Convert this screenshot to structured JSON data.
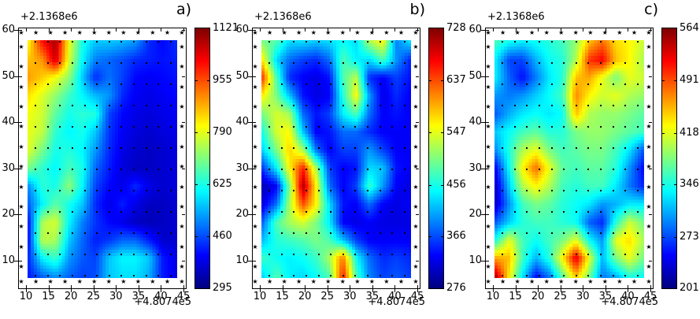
{
  "figure": {
    "background": "#ffffff",
    "star_glyph": "★",
    "marker_color": "#000000",
    "colormap": {
      "name": "jet",
      "stops": [
        {
          "t": 0.0,
          "color": "#00007f"
        },
        {
          "t": 0.125,
          "color": "#0000ff"
        },
        {
          "t": 0.375,
          "color": "#00ffff"
        },
        {
          "t": 0.5,
          "color": "#7fff7f"
        },
        {
          "t": 0.625,
          "color": "#ffff00"
        },
        {
          "t": 0.875,
          "color": "#ff0000"
        },
        {
          "t": 1.0,
          "color": "#7f0000"
        }
      ]
    }
  },
  "chart_data": [
    {
      "type": "heatmap",
      "title": "a)",
      "y_offset_label": "+2.1368e6",
      "x_offset_label": "+4.8074e5",
      "x_tick_labels": [
        "10",
        "15",
        "20",
        "25",
        "30",
        "35",
        "40",
        "45"
      ],
      "y_tick_labels": [
        "60",
        "50",
        "40",
        "30",
        "20",
        "10"
      ],
      "xlim": [
        8.2,
        45.7
      ],
      "ylim": [
        3.9,
        60.5
      ],
      "vmin": 295,
      "vmax": 1121,
      "colorbar_tick_labels": [
        "1121",
        "955",
        "790",
        "625",
        "460",
        "295"
      ],
      "colorbar_tick_values": [
        1121,
        955,
        790,
        625,
        460,
        295
      ],
      "grid_x": [
        12.5,
        15.3,
        18.1,
        20.9,
        23.7,
        26.5,
        29.2,
        32.0,
        34.8,
        37.6,
        40.4,
        43.2
      ],
      "grid_y": [
        58,
        54,
        50,
        46,
        42,
        38,
        34,
        30,
        26,
        22,
        18,
        14,
        10,
        7
      ],
      "values": [
        [
          820,
          1010,
          1090,
          800,
          620,
          560,
          560,
          545,
          520,
          430,
          400,
          430
        ],
        [
          860,
          900,
          1060,
          780,
          600,
          500,
          480,
          460,
          430,
          420,
          410,
          420
        ],
        [
          890,
          850,
          800,
          720,
          560,
          430,
          490,
          450,
          400,
          390,
          400,
          410
        ],
        [
          830,
          780,
          720,
          650,
          600,
          550,
          520,
          430,
          390,
          380,
          390,
          400
        ],
        [
          800,
          770,
          680,
          620,
          640,
          630,
          450,
          400,
          380,
          370,
          380,
          390
        ],
        [
          790,
          760,
          640,
          600,
          620,
          560,
          440,
          390,
          370,
          360,
          370,
          380
        ],
        [
          780,
          700,
          620,
          630,
          600,
          520,
          430,
          380,
          360,
          350,
          360,
          370
        ],
        [
          700,
          640,
          600,
          660,
          620,
          480,
          420,
          370,
          350,
          350,
          360,
          370
        ],
        [
          520,
          640,
          620,
          720,
          600,
          450,
          400,
          380,
          430,
          380,
          360,
          370
        ],
        [
          480,
          600,
          680,
          620,
          560,
          430,
          380,
          420,
          380,
          350,
          350,
          360
        ],
        [
          430,
          750,
          780,
          600,
          500,
          440,
          400,
          380,
          350,
          340,
          350,
          360
        ],
        [
          430,
          760,
          740,
          560,
          480,
          420,
          440,
          480,
          480,
          420,
          360,
          360
        ],
        [
          440,
          600,
          650,
          520,
          470,
          450,
          560,
          600,
          600,
          560,
          420,
          380
        ],
        [
          420,
          480,
          520,
          480,
          450,
          460,
          560,
          580,
          580,
          540,
          420,
          380
        ]
      ]
    },
    {
      "type": "heatmap",
      "title": "b)",
      "y_offset_label": "+2.1368e6",
      "x_offset_label": "+4.8074e5",
      "x_tick_labels": [
        "10",
        "15",
        "20",
        "25",
        "30",
        "35",
        "40",
        "45"
      ],
      "y_tick_labels": [
        "60",
        "50",
        "40",
        "30",
        "20",
        "10"
      ],
      "xlim": [
        8.2,
        45.7
      ],
      "ylim": [
        3.9,
        60.5
      ],
      "vmin": 276,
      "vmax": 728,
      "colorbar_tick_labels": [
        "728",
        "637",
        "547",
        "456",
        "366",
        "276"
      ],
      "colorbar_tick_values": [
        728,
        637,
        547,
        456,
        366,
        276
      ],
      "grid_x": [
        12.5,
        15.3,
        18.1,
        20.9,
        23.7,
        26.5,
        29.2,
        32.0,
        34.8,
        37.6,
        40.4,
        43.2
      ],
      "grid_y": [
        58,
        54,
        50,
        46,
        42,
        38,
        34,
        30,
        26,
        22,
        18,
        14,
        10,
        7
      ],
      "values": [
        [
          500,
          480,
          430,
          430,
          420,
          430,
          450,
          430,
          520,
          560,
          390,
          430
        ],
        [
          560,
          430,
          380,
          360,
          350,
          380,
          480,
          440,
          430,
          480,
          400,
          350
        ],
        [
          640,
          480,
          350,
          330,
          320,
          340,
          480,
          530,
          350,
          330,
          360,
          340
        ],
        [
          560,
          500,
          420,
          340,
          320,
          330,
          460,
          560,
          400,
          320,
          350,
          330
        ],
        [
          500,
          540,
          520,
          380,
          340,
          360,
          440,
          480,
          380,
          330,
          340,
          330
        ],
        [
          460,
          540,
          560,
          420,
          330,
          340,
          380,
          380,
          350,
          330,
          330,
          330
        ],
        [
          430,
          500,
          580,
          520,
          380,
          330,
          360,
          360,
          400,
          360,
          330,
          330
        ],
        [
          360,
          440,
          560,
          660,
          520,
          360,
          330,
          340,
          430,
          420,
          340,
          330
        ],
        [
          300,
          330,
          500,
          710,
          560,
          380,
          330,
          360,
          470,
          400,
          330,
          320
        ],
        [
          320,
          380,
          520,
          640,
          560,
          430,
          340,
          330,
          380,
          330,
          320,
          330
        ],
        [
          380,
          480,
          520,
          540,
          500,
          440,
          330,
          320,
          330,
          320,
          320,
          320
        ],
        [
          420,
          460,
          470,
          480,
          500,
          480,
          420,
          360,
          330,
          330,
          330,
          330
        ],
        [
          470,
          450,
          440,
          450,
          470,
          520,
          620,
          450,
          380,
          350,
          360,
          350
        ],
        [
          430,
          480,
          440,
          430,
          450,
          480,
          660,
          480,
          390,
          360,
          370,
          360
        ]
      ]
    },
    {
      "type": "heatmap",
      "title": "c)",
      "y_offset_label": "+2.1368e6",
      "x_offset_label": "+4.8074e5",
      "x_tick_labels": [
        "10",
        "15",
        "20",
        "25",
        "30",
        "35",
        "40",
        "45"
      ],
      "y_tick_labels": [
        "60",
        "50",
        "40",
        "30",
        "20",
        "10"
      ],
      "xlim": [
        8.2,
        45.7
      ],
      "ylim": [
        3.9,
        60.5
      ],
      "vmin": 201,
      "vmax": 564,
      "colorbar_tick_labels": [
        "564",
        "491",
        "418",
        "346",
        "273",
        "201"
      ],
      "colorbar_tick_values": [
        564,
        491,
        418,
        346,
        273,
        201
      ],
      "grid_x": [
        12.5,
        15.3,
        18.1,
        20.9,
        23.7,
        26.5,
        29.2,
        32.0,
        34.8,
        37.6,
        40.4,
        43.2
      ],
      "grid_y": [
        58,
        54,
        50,
        46,
        42,
        38,
        34,
        30,
        26,
        22,
        18,
        14,
        10,
        7
      ],
      "values": [
        [
          360,
          340,
          330,
          340,
          350,
          360,
          390,
          450,
          480,
          440,
          430,
          410
        ],
        [
          330,
          270,
          270,
          310,
          340,
          350,
          400,
          500,
          520,
          450,
          430,
          400
        ],
        [
          330,
          280,
          250,
          290,
          330,
          350,
          450,
          460,
          420,
          380,
          420,
          410
        ],
        [
          300,
          290,
          300,
          320,
          340,
          360,
          470,
          430,
          410,
          420,
          400,
          390
        ],
        [
          280,
          310,
          330,
          340,
          330,
          340,
          450,
          400,
          390,
          390,
          380,
          370
        ],
        [
          320,
          340,
          360,
          370,
          350,
          350,
          380,
          390,
          390,
          380,
          370,
          360
        ],
        [
          300,
          350,
          400,
          420,
          380,
          360,
          370,
          380,
          380,
          360,
          330,
          280
        ],
        [
          250,
          340,
          430,
          480,
          420,
          370,
          360,
          370,
          370,
          350,
          300,
          250
        ],
        [
          230,
          320,
          400,
          430,
          400,
          360,
          350,
          360,
          360,
          330,
          290,
          260
        ],
        [
          230,
          300,
          360,
          380,
          370,
          350,
          340,
          330,
          300,
          310,
          330,
          330
        ],
        [
          280,
          320,
          350,
          360,
          360,
          350,
          340,
          280,
          260,
          350,
          410,
          380
        ],
        [
          350,
          420,
          360,
          340,
          360,
          380,
          420,
          340,
          300,
          420,
          440,
          400
        ],
        [
          460,
          450,
          360,
          310,
          350,
          430,
          530,
          420,
          310,
          380,
          420,
          380
        ],
        [
          540,
          430,
          330,
          250,
          290,
          370,
          450,
          380,
          290,
          310,
          350,
          340
        ]
      ]
    }
  ]
}
